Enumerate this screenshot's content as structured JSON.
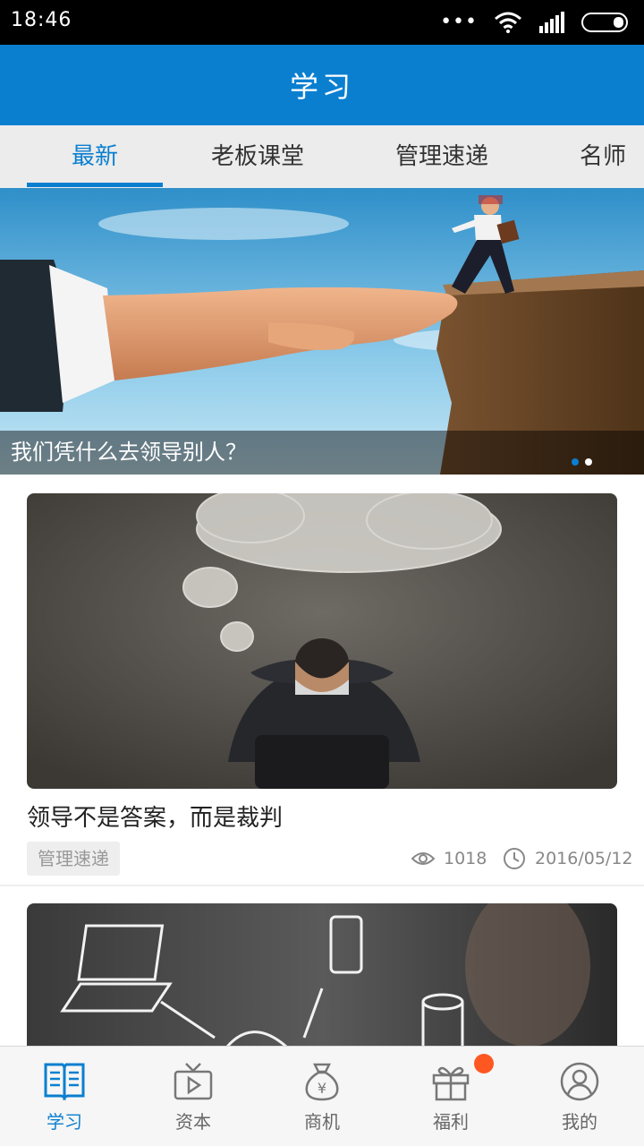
{
  "status_bar": {
    "time": "18:46"
  },
  "app_bar": {
    "title": "学习"
  },
  "tabs": [
    {
      "label": "最新",
      "active": true
    },
    {
      "label": "老板课堂",
      "active": false
    },
    {
      "label": "管理速递",
      "active": false
    },
    {
      "label": "名师",
      "active": false
    }
  ],
  "banner": {
    "caption": "我们凭什么去领导别人？",
    "page_count": 2,
    "current_page": 1
  },
  "articles": [
    {
      "title": "领导不是答案，而是裁判",
      "tag": "管理速递",
      "views": "1018",
      "date": "2016/05/12"
    }
  ],
  "bottom_nav": [
    {
      "label": "学习",
      "icon": "book-icon",
      "active": true
    },
    {
      "label": "资本",
      "icon": "tv-play-icon",
      "active": false
    },
    {
      "label": "商机",
      "icon": "money-bag-icon",
      "active": false
    },
    {
      "label": "福利",
      "icon": "gift-icon",
      "active": false,
      "badge": true
    },
    {
      "label": "我的",
      "icon": "user-icon",
      "active": false
    }
  ],
  "colors": {
    "primary": "#0a7fd0",
    "badge": "#ff5722",
    "status_bar": "#000000"
  }
}
